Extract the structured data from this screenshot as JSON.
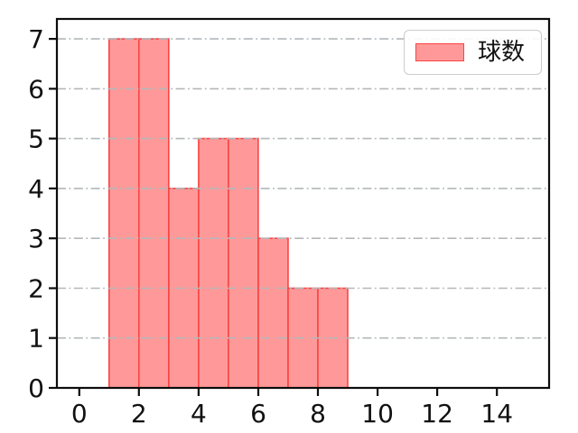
{
  "figure": {
    "background": "#ffffff"
  },
  "chart_data": {
    "type": "bar",
    "subtype": "histogram",
    "title": "",
    "xlabel": "",
    "ylabel": "",
    "bin_edges": [
      1,
      2,
      3,
      4,
      5,
      6,
      7,
      8,
      9
    ],
    "values": [
      7,
      7,
      4,
      5,
      5,
      3,
      2,
      2
    ],
    "series_name": "球数",
    "xlim": [
      -0.75,
      15.75
    ],
    "ylim": [
      0,
      7.4
    ],
    "xticks": [
      0,
      2,
      4,
      6,
      8,
      10,
      12,
      14
    ],
    "yticks": [
      0,
      1,
      2,
      3,
      4,
      5,
      6,
      7
    ],
    "grid": {
      "axis": "y",
      "linestyle": "dashdot",
      "color": "#b3b7ba",
      "drawn_above_bars": true
    },
    "colors": {
      "bar_fill": "#ff9999",
      "bar_edge": "#fb4444",
      "spine": "#0d0d0d",
      "tick_label": "#111111"
    },
    "legend": {
      "label": "球数",
      "position": "upper right",
      "border_color": "#cccccc",
      "background": "#ffffff"
    }
  }
}
